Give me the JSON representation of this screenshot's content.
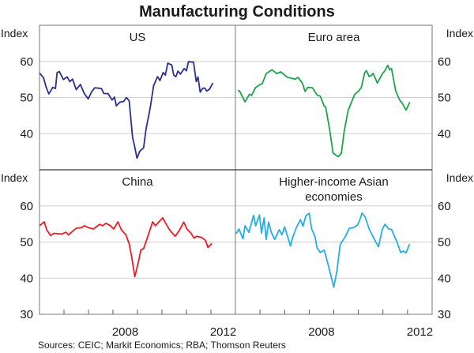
{
  "chart_data": {
    "type": "line",
    "title": "Manufacturing Conditions",
    "ylabel": "Index",
    "xlim": [
      2005,
      2013
    ],
    "ylim": [
      30,
      70
    ],
    "yticks": [
      30,
      40,
      50,
      60
    ],
    "xtick_labels": [
      "2008",
      "2012"
    ],
    "grid": true,
    "source": "Sources: CEIC; Markit Economics; RBA; Thomson Reuters",
    "panels": [
      {
        "name": "US",
        "title_lines": [
          "US"
        ],
        "color": "#2b2f8f",
        "points": [
          [
            2005.0,
            56.8
          ],
          [
            2005.16,
            55.5
          ],
          [
            2005.27,
            52.9
          ],
          [
            2005.38,
            51
          ],
          [
            2005.54,
            52.8
          ],
          [
            2005.65,
            52.5
          ],
          [
            2005.72,
            56.9
          ],
          [
            2005.81,
            57.2
          ],
          [
            2005.97,
            55
          ],
          [
            2006.13,
            55.7
          ],
          [
            2006.24,
            54.4
          ],
          [
            2006.35,
            55.1
          ],
          [
            2006.5,
            52.2
          ],
          [
            2006.67,
            53.6
          ],
          [
            2006.83,
            51.1
          ],
          [
            2006.99,
            49.6
          ],
          [
            2007.13,
            51.6
          ],
          [
            2007.26,
            52.7
          ],
          [
            2007.53,
            52.5
          ],
          [
            2007.63,
            51.1
          ],
          [
            2007.8,
            51.1
          ],
          [
            2007.96,
            49.3
          ],
          [
            2008.06,
            50.1
          ],
          [
            2008.14,
            47.7
          ],
          [
            2008.28,
            48.7
          ],
          [
            2008.44,
            48.9
          ],
          [
            2008.55,
            50
          ],
          [
            2008.66,
            49.1
          ],
          [
            2008.8,
            39
          ],
          [
            2008.87,
            36.9
          ],
          [
            2008.98,
            33.2
          ],
          [
            2009.09,
            35.1
          ],
          [
            2009.25,
            36.1
          ],
          [
            2009.35,
            41.2
          ],
          [
            2009.52,
            47.1
          ],
          [
            2009.66,
            53.3
          ],
          [
            2009.82,
            55.8
          ],
          [
            2009.92,
            54.7
          ],
          [
            2010.05,
            56.9
          ],
          [
            2010.14,
            56.2
          ],
          [
            2010.24,
            59.5
          ],
          [
            2010.4,
            59
          ],
          [
            2010.48,
            56.2
          ],
          [
            2010.57,
            55.8
          ],
          [
            2010.65,
            57.3
          ],
          [
            2010.75,
            56.5
          ],
          [
            2010.91,
            58
          ],
          [
            2011.0,
            57.4
          ],
          [
            2011.08,
            59.9
          ],
          [
            2011.29,
            59.8
          ],
          [
            2011.4,
            54.4
          ],
          [
            2011.47,
            55.7
          ],
          [
            2011.56,
            51.5
          ],
          [
            2011.67,
            52.6
          ],
          [
            2011.75,
            52.6
          ],
          [
            2011.83,
            51.8
          ],
          [
            2011.94,
            52.3
          ],
          [
            2012.08,
            54
          ]
        ]
      },
      {
        "name": "Euro area",
        "title_lines": [
          "Euro area"
        ],
        "color": "#1aa54a",
        "points": [
          [
            2005.1,
            52
          ],
          [
            2005.17,
            51.8
          ],
          [
            2005.39,
            48.8
          ],
          [
            2005.57,
            50.9
          ],
          [
            2005.66,
            50.6
          ],
          [
            2005.82,
            52.8
          ],
          [
            2005.98,
            53.5
          ],
          [
            2006.09,
            53.8
          ],
          [
            2006.25,
            56.6
          ],
          [
            2006.49,
            57.7
          ],
          [
            2006.68,
            56.6
          ],
          [
            2006.84,
            57.1
          ],
          [
            2007.11,
            55.6
          ],
          [
            2007.43,
            55.1
          ],
          [
            2007.54,
            55.6
          ],
          [
            2007.72,
            54
          ],
          [
            2007.83,
            51.7
          ],
          [
            2007.94,
            52.8
          ],
          [
            2008.13,
            52.7
          ],
          [
            2008.32,
            50.7
          ],
          [
            2008.45,
            50.4
          ],
          [
            2008.61,
            47.6
          ],
          [
            2008.67,
            47.4
          ],
          [
            2008.83,
            41.2
          ],
          [
            2008.97,
            34.6
          ],
          [
            2009.04,
            34.3
          ],
          [
            2009.18,
            33.6
          ],
          [
            2009.31,
            34.6
          ],
          [
            2009.42,
            40.5
          ],
          [
            2009.58,
            46.4
          ],
          [
            2009.85,
            50.9
          ],
          [
            2010.01,
            51.8
          ],
          [
            2010.12,
            52.8
          ],
          [
            2010.26,
            56.9
          ],
          [
            2010.33,
            57.4
          ],
          [
            2010.44,
            55.8
          ],
          [
            2010.55,
            56.2
          ],
          [
            2010.6,
            56.7
          ],
          [
            2010.77,
            54
          ],
          [
            2010.98,
            56.6
          ],
          [
            2011.08,
            57.4
          ],
          [
            2011.19,
            58.9
          ],
          [
            2011.27,
            57.7
          ],
          [
            2011.35,
            58
          ],
          [
            2011.52,
            51.8
          ],
          [
            2011.68,
            49.3
          ],
          [
            2011.78,
            48.5
          ],
          [
            2011.94,
            46.5
          ],
          [
            2012.09,
            48.7
          ]
        ]
      },
      {
        "name": "China",
        "title_lines": [
          "China"
        ],
        "color": "#ee1c25",
        "points": [
          [
            2005.0,
            54.5
          ],
          [
            2005.19,
            55.6
          ],
          [
            2005.3,
            53.3
          ],
          [
            2005.45,
            51.8
          ],
          [
            2005.59,
            52.4
          ],
          [
            2005.91,
            52.2
          ],
          [
            2006.08,
            52.7
          ],
          [
            2006.18,
            52
          ],
          [
            2006.34,
            52.9
          ],
          [
            2006.5,
            53.8
          ],
          [
            2006.72,
            54
          ],
          [
            2006.83,
            54.5
          ],
          [
            2006.99,
            54
          ],
          [
            2007.2,
            53.6
          ],
          [
            2007.45,
            54.9
          ],
          [
            2007.58,
            54.5
          ],
          [
            2007.71,
            55.2
          ],
          [
            2007.9,
            54.5
          ],
          [
            2008.03,
            53.6
          ],
          [
            2008.2,
            55.6
          ],
          [
            2008.35,
            53.3
          ],
          [
            2008.53,
            52
          ],
          [
            2008.66,
            49.5
          ],
          [
            2008.76,
            46
          ],
          [
            2008.89,
            40.4
          ],
          [
            2009.03,
            44.2
          ],
          [
            2009.14,
            47.8
          ],
          [
            2009.25,
            48.2
          ],
          [
            2009.39,
            50.9
          ],
          [
            2009.62,
            55.6
          ],
          [
            2009.73,
            54.5
          ],
          [
            2010.03,
            56.7
          ],
          [
            2010.16,
            55.1
          ],
          [
            2010.32,
            53.3
          ],
          [
            2010.54,
            51.6
          ],
          [
            2010.7,
            53.1
          ],
          [
            2010.89,
            55.5
          ],
          [
            2011.02,
            53.6
          ],
          [
            2011.18,
            52.5
          ],
          [
            2011.31,
            51.1
          ],
          [
            2011.43,
            51.6
          ],
          [
            2011.61,
            51.3
          ],
          [
            2011.77,
            50.5
          ],
          [
            2011.88,
            48.5
          ],
          [
            2012.04,
            49.6
          ]
        ]
      },
      {
        "name": "Higher-income Asian economies",
        "title_lines": [
          "Higher-income Asian",
          "economies"
        ],
        "color": "#22aee6",
        "points": [
          [
            2005.03,
            52.3
          ],
          [
            2005.14,
            53.6
          ],
          [
            2005.31,
            50.9
          ],
          [
            2005.39,
            54.5
          ],
          [
            2005.55,
            52.7
          ],
          [
            2005.74,
            57.4
          ],
          [
            2005.82,
            54.5
          ],
          [
            2005.98,
            57.5
          ],
          [
            2006.06,
            52.5
          ],
          [
            2006.17,
            56.7
          ],
          [
            2006.25,
            50.7
          ],
          [
            2006.35,
            55.5
          ],
          [
            2006.46,
            52.7
          ],
          [
            2006.6,
            50.7
          ],
          [
            2006.78,
            53.4
          ],
          [
            2006.89,
            52
          ],
          [
            2007.0,
            54.2
          ],
          [
            2007.24,
            48.9
          ],
          [
            2007.33,
            51.3
          ],
          [
            2007.48,
            54
          ],
          [
            2007.64,
            56.2
          ],
          [
            2007.75,
            54.4
          ],
          [
            2007.86,
            57.2
          ],
          [
            2008.0,
            58
          ],
          [
            2008.1,
            53.6
          ],
          [
            2008.24,
            51.5
          ],
          [
            2008.32,
            48.4
          ],
          [
            2008.45,
            47.1
          ],
          [
            2008.61,
            47.8
          ],
          [
            2008.77,
            43.8
          ],
          [
            2009.0,
            37.5
          ],
          [
            2009.13,
            42
          ],
          [
            2009.26,
            49.3
          ],
          [
            2009.47,
            51.5
          ],
          [
            2009.63,
            53.8
          ],
          [
            2009.8,
            54
          ],
          [
            2009.96,
            54.7
          ],
          [
            2010.04,
            55.8
          ],
          [
            2010.15,
            58
          ],
          [
            2010.28,
            56.9
          ],
          [
            2010.44,
            53.6
          ],
          [
            2010.71,
            50
          ],
          [
            2010.82,
            48.7
          ],
          [
            2010.98,
            53.6
          ],
          [
            2011.08,
            54.9
          ],
          [
            2011.24,
            53.6
          ],
          [
            2011.35,
            53.5
          ],
          [
            2011.57,
            50
          ],
          [
            2011.72,
            47.1
          ],
          [
            2011.83,
            47.5
          ],
          [
            2011.94,
            47
          ],
          [
            2012.08,
            49.4
          ]
        ]
      }
    ]
  }
}
